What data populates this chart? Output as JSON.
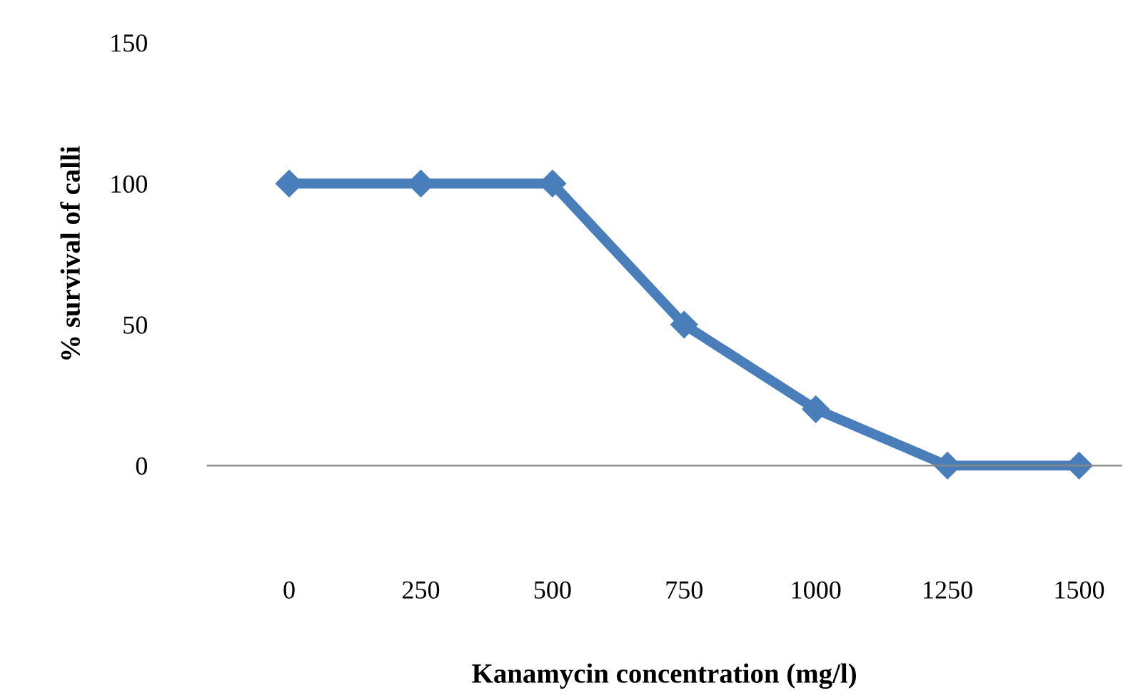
{
  "chart_data": {
    "type": "line",
    "xlabel": "Kanamycin concentration (mg/l)",
    "ylabel": "% survival of calli",
    "categories": [
      "0",
      "250",
      "500",
      "750",
      "1000",
      "1250",
      "1500"
    ],
    "series": [
      {
        "color": "#4a7ebb",
        "values": [
          100,
          100,
          100,
          50,
          20,
          0,
          0
        ]
      }
    ],
    "ylim": [
      0,
      150
    ],
    "yticks": [
      0,
      50,
      100,
      150
    ],
    "marker": "diamond",
    "line_style": "solid",
    "grid": false,
    "legend": false
  }
}
